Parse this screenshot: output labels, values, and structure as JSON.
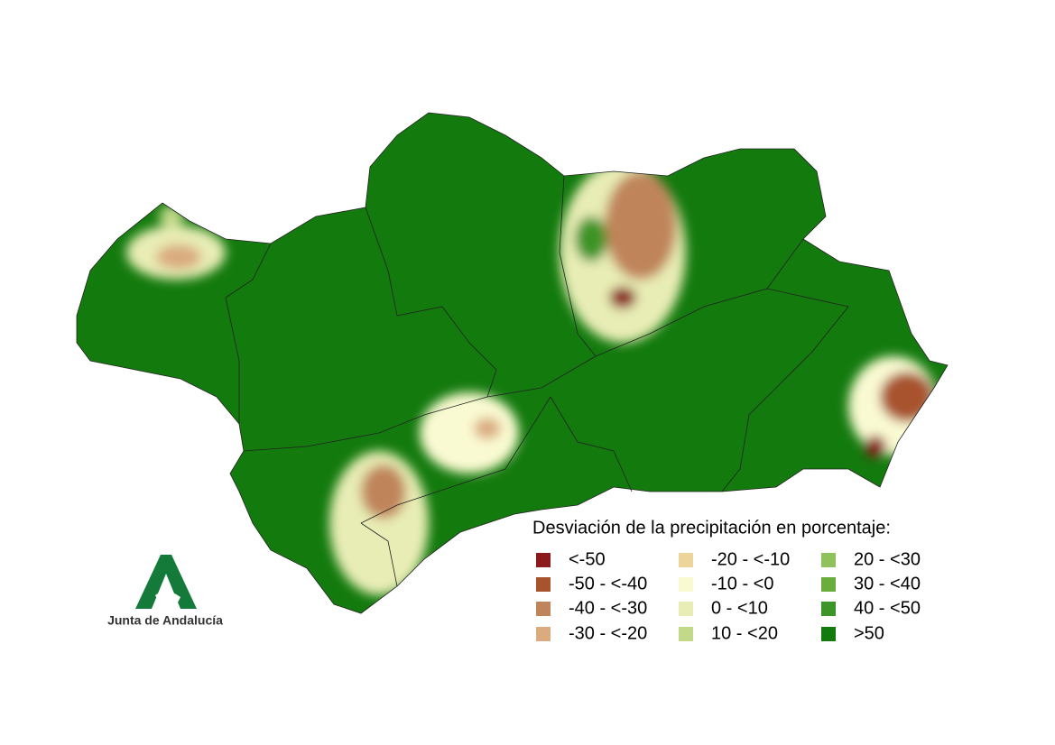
{
  "map": {
    "legend": {
      "title": "Desviación de la precipitación en porcentaje:",
      "items": [
        {
          "label": "<-50",
          "color": "#8b1a1a"
        },
        {
          "label": "-50 - <-40",
          "color": "#a8522e"
        },
        {
          "label": "-40 - <-30",
          "color": "#c0845a"
        },
        {
          "label": "-30 - <-20",
          "color": "#d9ab7e"
        },
        {
          "label": "-20 - <-10",
          "color": "#ecd49a"
        },
        {
          "label": "-10 - <0",
          "color": "#fafad2"
        },
        {
          "label": "0 - <10",
          "color": "#e8edb5"
        },
        {
          "label": "10 - <20",
          "color": "#c3d98a"
        },
        {
          "label": "20 - <30",
          "color": "#8fc25c"
        },
        {
          "label": "30 - <40",
          "color": "#6aad3e"
        },
        {
          "label": "40 - <50",
          "color": "#3d9428"
        },
        {
          "label": ">50",
          "color": "#137a0e"
        }
      ]
    },
    "logo": {
      "text": "Junta de Andalucía"
    }
  }
}
